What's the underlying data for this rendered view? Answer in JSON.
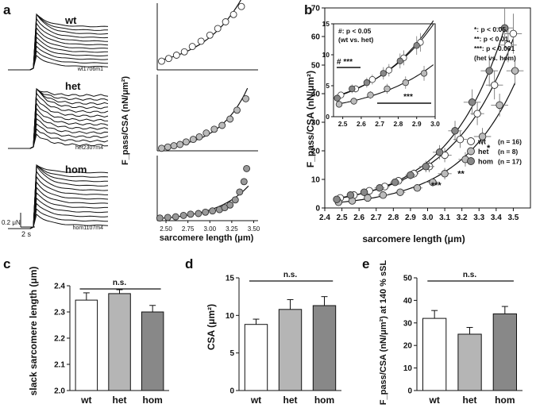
{
  "panels": {
    "a": {
      "letter": "a",
      "traces": [
        {
          "group": "wt",
          "id": "wt1706m1"
        },
        {
          "group": "het",
          "id": "het2307m4"
        },
        {
          "group": "hom",
          "id": "hom1107m4"
        }
      ],
      "scalebar_y": "0.2 μN",
      "scalebar_x": "2 s"
    },
    "b": {
      "letter": "b"
    },
    "c": {
      "letter": "c"
    },
    "d": {
      "letter": "d"
    },
    "e": {
      "letter": "e"
    }
  },
  "chart_data": [
    {
      "id": "a-right",
      "type": "scatter",
      "ylabel": "F_pass/CSA (nN/μm²)",
      "xlabel": "sarcomere length (μm)",
      "xlim": [
        2.4,
        3.55
      ],
      "xticks": [
        "2.50",
        "2.75",
        "3.00",
        "3.25",
        "3.50"
      ],
      "subplots": [
        {
          "name": "wt",
          "color": "#ffffff",
          "ylim": [
            0,
            100
          ],
          "x": [
            2.45,
            2.53,
            2.62,
            2.71,
            2.8,
            2.9,
            3.0,
            3.09,
            3.18,
            3.27,
            3.36
          ],
          "y": [
            13,
            17,
            22,
            27,
            35,
            43,
            52,
            62,
            72,
            83,
            95
          ]
        },
        {
          "name": "het",
          "color": "#bbbbbb",
          "ylim": [
            0,
            60
          ],
          "x": [
            2.45,
            2.52,
            2.59,
            2.66,
            2.73,
            2.81,
            2.88,
            2.96,
            3.05,
            3.14,
            3.23,
            3.31,
            3.41
          ],
          "y": [
            2,
            3,
            4,
            5,
            7,
            9,
            11,
            14,
            17,
            20,
            25,
            32,
            41
          ]
        },
        {
          "name": "hom",
          "color": "#999999",
          "ylim": [
            0,
            100
          ],
          "x": [
            2.43,
            2.52,
            2.61,
            2.7,
            2.78,
            2.87,
            2.95,
            3.03,
            3.11,
            3.17,
            3.23,
            3.29,
            3.34,
            3.39,
            3.42
          ],
          "y": [
            4,
            5,
            6,
            8,
            10,
            11,
            13,
            15,
            17,
            20,
            24,
            32,
            44,
            60,
            80
          ]
        }
      ]
    },
    {
      "id": "b",
      "type": "scatter",
      "ylabel": "F_pass/CSA (nN/μm²)",
      "xlabel": "sarcomere length (μm)",
      "xlim": [
        2.4,
        3.6
      ],
      "ylim": [
        0,
        70
      ],
      "xticks": [
        "2.4",
        "2.5",
        "2.6",
        "2.7",
        "2.8",
        "2.9",
        "3.0",
        "3.1",
        "3.2",
        "3.3",
        "3.4",
        "3.5"
      ],
      "yticks": [
        "0",
        "10",
        "20",
        "30",
        "40",
        "50",
        "60",
        "70"
      ],
      "legend": [
        {
          "label": "wt",
          "n": "(n = 16)",
          "color": "#ffffff"
        },
        {
          "label": "het",
          "n": "(n =  8)",
          "color": "#bbbbbb"
        },
        {
          "label": "hom",
          "n": "(n = 17)",
          "color": "#888888"
        }
      ],
      "significance": {
        "legend": [
          "*: p < 0.05,",
          "**: p < 0.01,",
          "***: p < 0.001",
          "(het vs. hom)"
        ],
        "star1": "*",
        "star2": "**",
        "star3": "***"
      },
      "series": [
        {
          "name": "wt",
          "color": "#ffffff",
          "x": [
            2.49,
            2.57,
            2.66,
            2.75,
            2.83,
            2.92,
            3.01,
            3.1,
            3.19,
            3.29,
            3.39,
            3.47,
            3.5
          ],
          "y": [
            3.5,
            4.5,
            6,
            7.5,
            9.5,
            12,
            14.5,
            18.5,
            24,
            33,
            43,
            57,
            61
          ],
          "xerr": [
            0.02,
            0.02,
            0.02,
            0.03,
            0.03,
            0.03,
            0.03,
            0.04,
            0.04,
            0.04,
            0.05,
            0.05,
            0.05
          ],
          "yerr": [
            0.5,
            0.6,
            0.8,
            1,
            1.2,
            1.5,
            2,
            2.5,
            3,
            4,
            5,
            6,
            7
          ]
        },
        {
          "name": "het",
          "color": "#bbbbbb",
          "x": [
            2.48,
            2.56,
            2.65,
            2.74,
            2.84,
            2.94,
            3.03,
            3.1,
            3.22,
            3.32,
            3.42,
            3.51
          ],
          "y": [
            2,
            2.5,
            3.5,
            4.5,
            5.5,
            7,
            9,
            12,
            17,
            25,
            36,
            48
          ],
          "xerr": [
            0.02,
            0.02,
            0.02,
            0.03,
            0.03,
            0.03,
            0.04,
            0.04,
            0.04,
            0.05,
            0.05,
            0.05
          ],
          "yerr": [
            0.4,
            0.5,
            0.6,
            0.8,
            1,
            1.2,
            1.5,
            2,
            2.5,
            3,
            4,
            5
          ]
        },
        {
          "name": "hom",
          "color": "#888888",
          "x": [
            2.47,
            2.55,
            2.63,
            2.72,
            2.81,
            2.9,
            2.99,
            3.07,
            3.16,
            3.26,
            3.36,
            3.45
          ],
          "y": [
            3,
            4.5,
            5.5,
            7,
            9,
            11.5,
            14.5,
            19.5,
            27,
            37,
            48,
            63
          ],
          "xerr": [
            0.02,
            0.02,
            0.02,
            0.03,
            0.03,
            0.03,
            0.04,
            0.04,
            0.04,
            0.05,
            0.05,
            0.05
          ],
          "yerr": [
            0.5,
            0.7,
            0.8,
            1,
            1.2,
            1.5,
            2,
            2.5,
            3.5,
            4.5,
            5.5,
            7
          ]
        }
      ],
      "inset": {
        "xlim": [
          2.45,
          3.0
        ],
        "ylim": [
          0,
          15
        ],
        "xticks": [
          "2.5",
          "2.6",
          "2.7",
          "2.8",
          "2.9",
          "3.0"
        ],
        "yticks": [
          "0",
          "5",
          "10",
          "15"
        ],
        "annotation": [
          "#: p < 0.05",
          "(wt vs. het)"
        ],
        "bracket1_label": "#  ***",
        "bracket2_label": "***",
        "series": [
          {
            "name": "wt",
            "x": [
              2.49,
              2.57,
              2.66,
              2.75,
              2.83,
              2.92
            ],
            "y": [
              3.5,
              4.5,
              6,
              7.5,
              9.5,
              12
            ],
            "yerr": [
              0.5,
              0.6,
              0.8,
              1,
              1.2,
              1.5
            ]
          },
          {
            "name": "het",
            "x": [
              2.48,
              2.56,
              2.65,
              2.74,
              2.84,
              2.94
            ],
            "y": [
              2,
              2.5,
              3.5,
              4.5,
              5.5,
              7
            ],
            "yerr": [
              0.4,
              0.5,
              0.6,
              0.8,
              1,
              1.2
            ]
          },
          {
            "name": "hom",
            "x": [
              2.47,
              2.55,
              2.63,
              2.72,
              2.81,
              2.9
            ],
            "y": [
              3,
              4.5,
              5.5,
              7,
              9,
              11.5
            ],
            "yerr": [
              0.5,
              0.7,
              0.8,
              1,
              1.2,
              1.5
            ]
          }
        ]
      }
    },
    {
      "id": "c",
      "type": "bar",
      "ylabel": "slack sarcomere length (μm)",
      "categories": [
        "wt",
        "het",
        "hom"
      ],
      "values": [
        2.345,
        2.37,
        2.3
      ],
      "errors": [
        0.028,
        0.015,
        0.025
      ],
      "colors": [
        "#ffffff",
        "#b5b5b5",
        "#888888"
      ],
      "ylim": [
        2.0,
        2.4
      ],
      "yticks": [
        "2.0",
        "2.1",
        "2.2",
        "2.3",
        "2.4"
      ],
      "annotation": "n.s."
    },
    {
      "id": "d",
      "type": "bar",
      "ylabel": "CSA (μm²)",
      "categories": [
        "wt",
        "het",
        "hom"
      ],
      "values": [
        8.8,
        10.8,
        11.3
      ],
      "errors": [
        0.7,
        1.3,
        1.2
      ],
      "colors": [
        "#ffffff",
        "#b5b5b5",
        "#888888"
      ],
      "ylim": [
        0,
        15
      ],
      "yticks": [
        "0",
        "5",
        "10",
        "15"
      ],
      "annotation": "n.s."
    },
    {
      "id": "e",
      "type": "bar",
      "ylabel": "F_pass/CSA (nN/μm²) at 140 % sSL",
      "categories": [
        "wt",
        "het",
        "hom"
      ],
      "values": [
        32,
        25,
        34
      ],
      "errors": [
        3.5,
        3,
        3.3
      ],
      "colors": [
        "#ffffff",
        "#b5b5b5",
        "#888888"
      ],
      "ylim": [
        0,
        50
      ],
      "yticks": [
        "0",
        "10",
        "20",
        "30",
        "40",
        "50"
      ],
      "annotation": "n.s."
    }
  ]
}
